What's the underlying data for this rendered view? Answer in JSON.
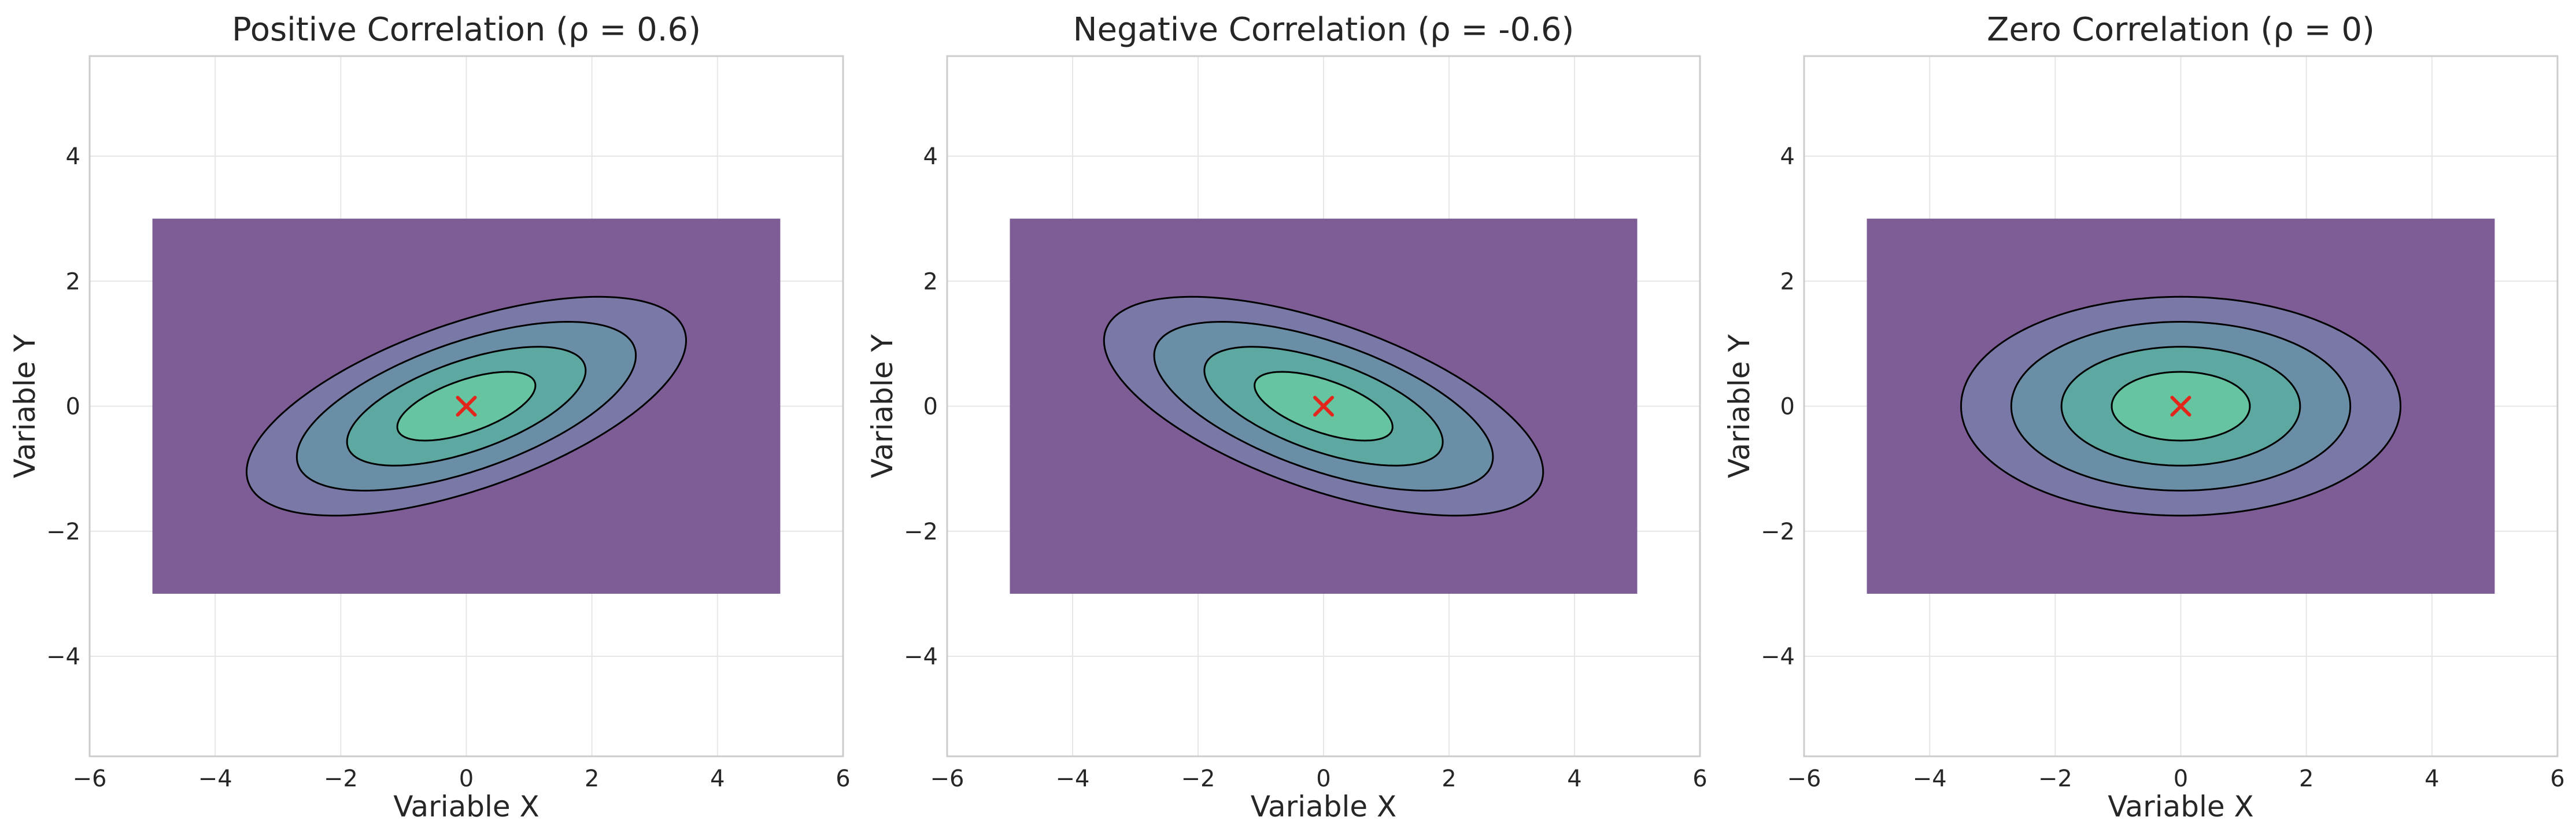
{
  "chart_data": [
    {
      "type": "contour",
      "title": "Positive Correlation (ρ = 0.6)",
      "xlabel": "Variable X",
      "ylabel": "Variable Y",
      "xlim": [
        -6,
        6
      ],
      "ylim": [
        -5.6,
        5.6
      ],
      "xticks": [
        -6,
        -4,
        -2,
        0,
        2,
        4,
        6
      ],
      "yticks": [
        -4,
        -2,
        0,
        2,
        4
      ],
      "xtick_labels": [
        "−6",
        "−4",
        "−2",
        "0",
        "2",
        "4",
        "6"
      ],
      "ytick_labels": [
        "−4",
        "−2",
        "0",
        "2",
        "4"
      ],
      "grid": true,
      "background_region": {
        "x": [
          -5,
          5
        ],
        "y": [
          -3,
          3
        ],
        "color": "#7e5c96"
      },
      "mean": [
        0,
        0
      ],
      "rho": 0.6,
      "sigma_x": 2,
      "sigma_y": 1,
      "contour_mahalanobis_levels": [
        0.55,
        0.95,
        1.35,
        1.75
      ],
      "fill_colors": [
        "#66c4a1",
        "#5da9a1",
        "#6a8ea6",
        "#7a78a7"
      ],
      "line_color": "#000000",
      "center_marker": {
        "symbol": "x",
        "color": "#e3261b",
        "x": 0,
        "y": 0
      }
    },
    {
      "type": "contour",
      "title": "Negative Correlation (ρ = -0.6)",
      "xlabel": "Variable X",
      "ylabel": "Variable Y",
      "xlim": [
        -6,
        6
      ],
      "ylim": [
        -5.6,
        5.6
      ],
      "xticks": [
        -6,
        -4,
        -2,
        0,
        2,
        4,
        6
      ],
      "yticks": [
        -4,
        -2,
        0,
        2,
        4
      ],
      "xtick_labels": [
        "−6",
        "−4",
        "−2",
        "0",
        "2",
        "4",
        "6"
      ],
      "ytick_labels": [
        "−4",
        "−2",
        "0",
        "2",
        "4"
      ],
      "grid": true,
      "background_region": {
        "x": [
          -5,
          5
        ],
        "y": [
          -3,
          3
        ],
        "color": "#7e5c96"
      },
      "mean": [
        0,
        0
      ],
      "rho": -0.6,
      "sigma_x": 2,
      "sigma_y": 1,
      "contour_mahalanobis_levels": [
        0.55,
        0.95,
        1.35,
        1.75
      ],
      "fill_colors": [
        "#66c4a1",
        "#5da9a1",
        "#6a8ea6",
        "#7a78a7"
      ],
      "line_color": "#000000",
      "center_marker": {
        "symbol": "x",
        "color": "#e3261b",
        "x": 0,
        "y": 0
      }
    },
    {
      "type": "contour",
      "title": "Zero Correlation (ρ = 0)",
      "xlabel": "Variable X",
      "ylabel": "Variable Y",
      "xlim": [
        -6,
        6
      ],
      "ylim": [
        -5.6,
        5.6
      ],
      "xticks": [
        -6,
        -4,
        -2,
        0,
        2,
        4,
        6
      ],
      "yticks": [
        -4,
        -2,
        0,
        2,
        4
      ],
      "xtick_labels": [
        "−6",
        "−4",
        "−2",
        "0",
        "2",
        "4",
        "6"
      ],
      "ytick_labels": [
        "−4",
        "−2",
        "0",
        "2",
        "4"
      ],
      "grid": true,
      "background_region": {
        "x": [
          -5,
          5
        ],
        "y": [
          -3,
          3
        ],
        "color": "#7e5c96"
      },
      "mean": [
        0,
        0
      ],
      "rho": 0,
      "sigma_x": 2,
      "sigma_y": 1,
      "contour_mahalanobis_levels": [
        0.55,
        0.95,
        1.35,
        1.75
      ],
      "fill_colors": [
        "#66c4a1",
        "#5da9a1",
        "#6a8ea6",
        "#7a78a7"
      ],
      "line_color": "#000000",
      "center_marker": {
        "symbol": "x",
        "color": "#e3261b",
        "x": 0,
        "y": 0
      }
    }
  ]
}
